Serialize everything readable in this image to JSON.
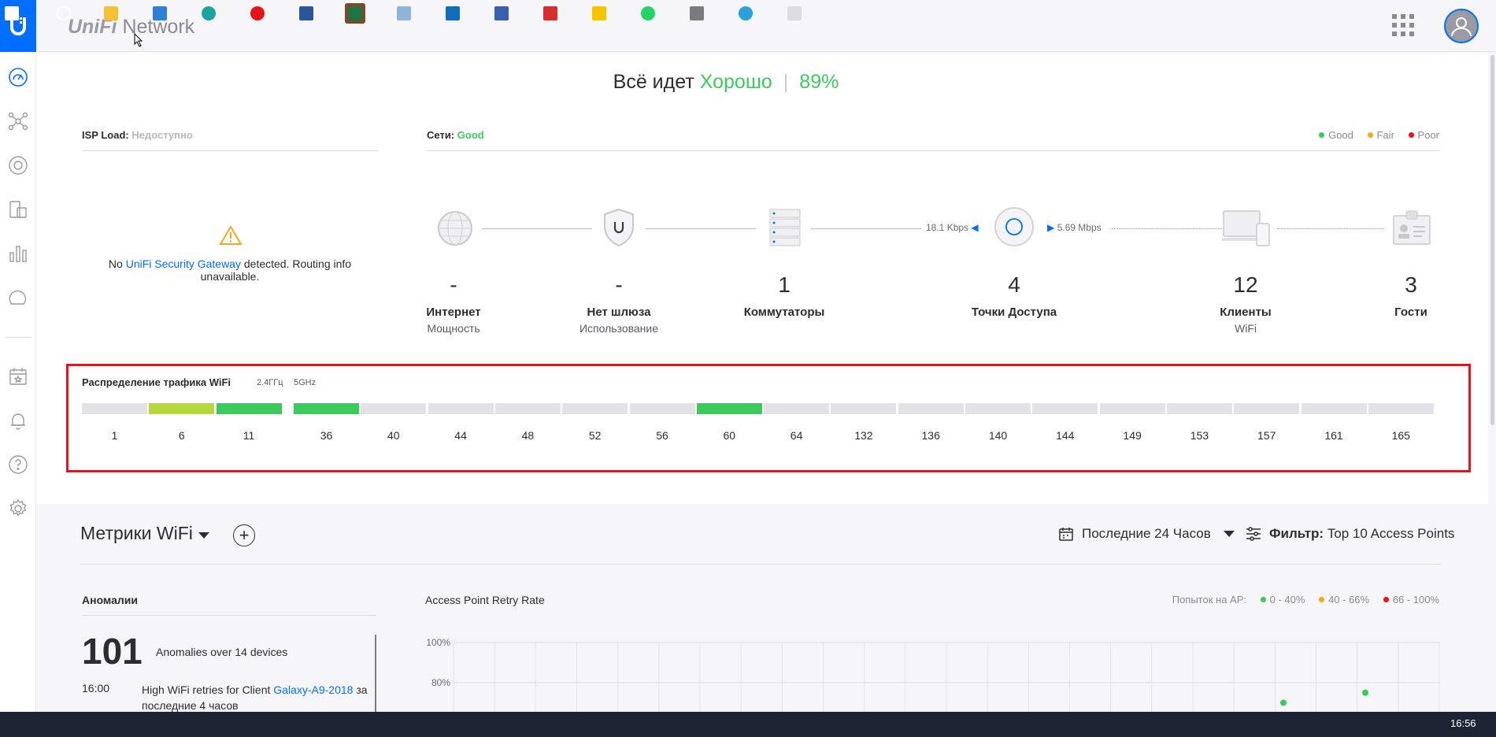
{
  "header": {
    "brand_uni": "UniFi",
    "brand_network": "Network"
  },
  "status": {
    "prefix": "Всё идет",
    "health": "Хорошо",
    "score": "89%"
  },
  "isp": {
    "label": "ISP Load:",
    "value": "Недоступно",
    "msg_prefix": "No",
    "msg_link": "UniFi Security Gateway",
    "msg_suffix": "detected. Routing info unavailable."
  },
  "networks": {
    "label": "Сети:",
    "value": "Good",
    "legend": [
      {
        "label": "Good",
        "color": "#3ccb5a"
      },
      {
        "label": "Fair",
        "color": "#f5a623"
      },
      {
        "label": "Poor",
        "color": "#e8121a"
      }
    ],
    "speed_down": "18.1 Kbps",
    "speed_up": "5.69 Mbps",
    "nodes": [
      {
        "num": "-",
        "label": "Интернет",
        "sub": "Мощность",
        "icon": "globe-icon"
      },
      {
        "num": "-",
        "label": "Нет шлюза",
        "sub": "Использование",
        "icon": "gateway-shield-icon"
      },
      {
        "num": "1",
        "label": "Коммутаторы",
        "sub": "",
        "icon": "switch-stack-icon"
      },
      {
        "num": "4",
        "label": "Точки Доступа",
        "sub": "",
        "icon": "access-point-icon"
      },
      {
        "num": "12",
        "label": "Клиенты",
        "sub": "WiFi",
        "icon": "devices-icon"
      },
      {
        "num": "3",
        "label": "Гости",
        "sub": "",
        "icon": "guest-badge-icon"
      }
    ]
  },
  "wifi_distribution": {
    "title": "Распределение трафика WiFi",
    "band_24": "2.4ГГц",
    "band_5": "5GHz",
    "channels_24": [
      "1",
      "6",
      "11"
    ],
    "channels_5": [
      "36",
      "40",
      "44",
      "48",
      "52",
      "56",
      "60",
      "64",
      "132",
      "136",
      "140",
      "144",
      "149",
      "153",
      "157",
      "161",
      "165"
    ],
    "colors": {
      "idle": "#e3e3e6",
      "light": "#b5d93c",
      "busy": "#3ccb5a"
    },
    "usage_24": [
      "idle",
      "light",
      "busy"
    ],
    "usage_5": [
      "busy",
      "idle",
      "idle",
      "idle",
      "idle",
      "idle",
      "busy",
      "idle",
      "idle",
      "idle",
      "idle",
      "idle",
      "idle",
      "idle",
      "idle",
      "idle",
      "idle"
    ]
  },
  "metrics": {
    "title": "Метрики WiFi",
    "period": "Последние 24 Часов",
    "filter_label": "Фильтр:",
    "filter_value": "Top 10 Access Points"
  },
  "anomalies": {
    "title": "Аномалии",
    "count": "101",
    "summary": "Anomalies over 14 devices",
    "items": [
      {
        "time": "16:00",
        "text": "High WiFi retries for Client",
        "link": "Galaxy-A9-2018",
        "suffix": "за последние 4 часов"
      }
    ]
  },
  "retry_chart": {
    "title": "Access Point Retry Rate",
    "legend_prefix": "Попыток на AP:",
    "legend": [
      {
        "label": "0 - 40%",
        "color": "#3ccb5a"
      },
      {
        "label": "40 - 66%",
        "color": "#f5a623"
      },
      {
        "label": "66 - 100%",
        "color": "#e8121a"
      }
    ]
  },
  "chart_data": {
    "type": "scatter",
    "title": "Access Point Retry Rate",
    "y_ticks": [
      "100%",
      "80%"
    ],
    "ylim": [
      0,
      100
    ],
    "points_color": "#3ccb5a",
    "series": [
      {
        "values": [
          70,
          75
        ]
      }
    ]
  },
  "taskbar": {
    "time": "16:56",
    "apps": [
      "start-icon",
      "search-icon",
      "file-explorer-icon",
      "outlook-card-icon",
      "edge-icon",
      "yandex-browser-icon",
      "word-icon",
      "excel-icon",
      "notepad-icon",
      "outlook-icon",
      "monitor-icon",
      "pdf-icon",
      "puzzle-icon",
      "whatsapp-icon",
      "calculator-icon",
      "telegram-icon",
      "settings-icon"
    ]
  }
}
